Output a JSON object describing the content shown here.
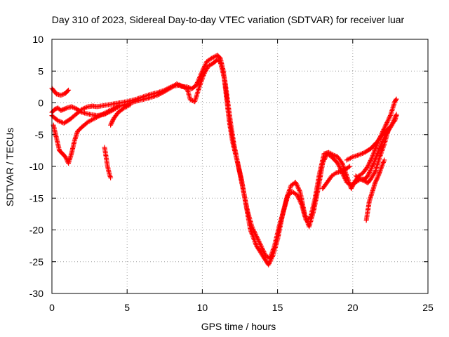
{
  "chart_data": {
    "type": "scatter",
    "title": "Day 310 of 2023, Sidereal Day-to-day VTEC variation (SDTVAR) for receiver luar",
    "xlabel": "GPS time / hours",
    "ylabel": "SDTVAR / TECUs",
    "xlim": [
      0,
      25
    ],
    "ylim": [
      -30,
      10
    ],
    "xticks": [
      "0",
      "5",
      "10",
      "15",
      "20",
      "25"
    ],
    "yticks": [
      "10",
      "5",
      "0",
      "-5",
      "-10",
      "-15",
      "-20",
      "-25",
      "-30"
    ],
    "grid": true,
    "marker": "+",
    "color": "#ff0000",
    "series": [
      {
        "points": [
          [
            0.0,
            -1.5
          ],
          [
            0.2,
            -1.0
          ],
          [
            0.4,
            -0.8
          ],
          [
            0.6,
            -1.2
          ],
          [
            0.8,
            -1.0
          ],
          [
            1.0,
            -0.8
          ],
          [
            1.3,
            -0.6
          ],
          [
            1.6,
            -0.9
          ],
          [
            2.0,
            -1.5
          ],
          [
            2.5,
            -1.8
          ],
          [
            3.0,
            -2.0
          ],
          [
            3.5,
            -1.8
          ],
          [
            4.0,
            -1.2
          ],
          [
            4.5,
            -0.5
          ],
          [
            5.0,
            -0.2
          ],
          [
            5.5,
            0.2
          ],
          [
            6.0,
            0.5
          ],
          [
            6.5,
            0.8
          ],
          [
            7.0,
            1.2
          ],
          [
            7.5,
            1.8
          ],
          [
            8.0,
            2.5
          ],
          [
            8.3,
            3.0
          ],
          [
            8.6,
            2.6
          ],
          [
            9.0,
            2.5
          ],
          [
            9.3,
            2.2
          ],
          [
            9.6,
            2.8
          ],
          [
            10.0,
            5.0
          ],
          [
            10.3,
            6.5
          ],
          [
            10.6,
            7.0
          ],
          [
            11.0,
            7.5
          ],
          [
            11.2,
            7.0
          ],
          [
            11.4,
            5.0
          ],
          [
            11.6,
            1.0
          ],
          [
            11.8,
            -3.0
          ],
          [
            12.0,
            -6.0
          ],
          [
            12.3,
            -9.0
          ],
          [
            12.6,
            -12.0
          ],
          [
            12.9,
            -16.0
          ],
          [
            13.2,
            -20.0
          ],
          [
            13.6,
            -22.5
          ],
          [
            14.0,
            -24.0
          ],
          [
            14.4,
            -25.5
          ],
          [
            14.7,
            -24.0
          ],
          [
            15.0,
            -21.5
          ],
          [
            15.3,
            -18.0
          ],
          [
            15.6,
            -15.0
          ],
          [
            15.9,
            -13.0
          ],
          [
            16.2,
            -12.5
          ],
          [
            16.5,
            -14.0
          ],
          [
            16.8,
            -17.5
          ],
          [
            17.1,
            -19.5
          ],
          [
            17.4,
            -17.0
          ],
          [
            17.7,
            -13.5
          ],
          [
            18.0,
            -9.5
          ],
          [
            18.3,
            -8.0
          ],
          [
            18.6,
            -8.5
          ],
          [
            19.0,
            -9.5
          ],
          [
            19.3,
            -11.0
          ],
          [
            19.6,
            -12.5
          ],
          [
            19.9,
            -13.0
          ],
          [
            20.2,
            -12.5
          ],
          [
            20.5,
            -12.0
          ],
          [
            20.8,
            -12.0
          ],
          [
            21.0,
            -11.5
          ],
          [
            21.4,
            -9.5
          ],
          [
            21.8,
            -7.0
          ],
          [
            22.2,
            -5.0
          ],
          [
            22.6,
            -3.5
          ],
          [
            22.9,
            -1.8
          ]
        ]
      },
      {
        "points": [
          [
            0.0,
            -2.0
          ],
          [
            0.4,
            -2.8
          ],
          [
            0.8,
            -3.2
          ],
          [
            1.2,
            -2.6
          ],
          [
            1.6,
            -1.8
          ],
          [
            2.0,
            -1.0
          ],
          [
            2.4,
            -0.6
          ],
          [
            2.7,
            -0.5
          ],
          [
            3.0,
            -0.6
          ],
          [
            3.5,
            -0.4
          ],
          [
            4.0,
            -0.2
          ],
          [
            4.5,
            0.0
          ],
          [
            5.0,
            0.2
          ],
          [
            5.5,
            0.5
          ],
          [
            6.0,
            0.9
          ],
          [
            6.5,
            1.3
          ],
          [
            7.0,
            1.6
          ],
          [
            7.5,
            2.0
          ],
          [
            8.0,
            2.6
          ],
          [
            8.5,
            2.8
          ],
          [
            9.0,
            2.2
          ],
          [
            9.2,
            0.5
          ],
          [
            9.5,
            0.2
          ],
          [
            9.8,
            2.5
          ],
          [
            10.1,
            4.5
          ],
          [
            10.4,
            5.8
          ],
          [
            10.7,
            6.2
          ],
          [
            11.0,
            6.8
          ],
          [
            11.2,
            6.4
          ],
          [
            11.5,
            3.5
          ],
          [
            11.7,
            0.0
          ],
          [
            11.9,
            -3.5
          ],
          [
            12.1,
            -6.5
          ],
          [
            12.4,
            -10.0
          ],
          [
            12.7,
            -13.5
          ],
          [
            13.0,
            -17.0
          ],
          [
            13.3,
            -19.5
          ],
          [
            13.6,
            -21.0
          ],
          [
            13.9,
            -22.5
          ],
          [
            14.2,
            -24.0
          ],
          [
            14.5,
            -24.5
          ],
          [
            14.8,
            -22.5
          ],
          [
            15.1,
            -19.5
          ],
          [
            15.4,
            -17.0
          ],
          [
            15.7,
            -14.5
          ],
          [
            16.0,
            -14.0
          ],
          [
            16.3,
            -14.5
          ],
          [
            16.6,
            -16.0
          ],
          [
            16.9,
            -18.5
          ],
          [
            17.2,
            -18.0
          ],
          [
            17.5,
            -15.0
          ],
          [
            17.8,
            -11.0
          ],
          [
            18.1,
            -8.0
          ],
          [
            18.4,
            -7.8
          ],
          [
            18.7,
            -8.2
          ],
          [
            19.0,
            -8.5
          ],
          [
            19.3,
            -9.5
          ],
          [
            19.6,
            -11.5
          ],
          [
            19.9,
            -13.5
          ],
          [
            20.1,
            -12.5
          ],
          [
            20.4,
            -11.5
          ],
          [
            20.7,
            -11.0
          ],
          [
            21.0,
            -10.0
          ],
          [
            21.3,
            -8.5
          ],
          [
            21.7,
            -6.0
          ],
          [
            22.1,
            -4.0
          ],
          [
            22.5,
            -2.0
          ],
          [
            22.8,
            0.2
          ],
          [
            22.9,
            0.6
          ]
        ]
      },
      {
        "points": [
          [
            0.1,
            -3.5
          ],
          [
            0.3,
            -5.5
          ],
          [
            0.5,
            -7.5
          ],
          [
            0.7,
            -8.0
          ],
          [
            0.9,
            -8.5
          ],
          [
            1.1,
            -9.5
          ],
          [
            1.3,
            -8.0
          ],
          [
            1.5,
            -6.0
          ],
          [
            1.7,
            -4.5
          ],
          [
            2.0,
            -3.8
          ],
          [
            2.4,
            -3.0
          ],
          [
            2.8,
            -2.5
          ],
          [
            3.2,
            -2.0
          ],
          [
            3.6,
            -1.5
          ],
          [
            4.0,
            -1.0
          ],
          [
            4.4,
            -0.5
          ]
        ]
      },
      {
        "points": [
          [
            0.0,
            2.3
          ],
          [
            0.3,
            1.4
          ],
          [
            0.6,
            1.2
          ],
          [
            0.9,
            1.5
          ],
          [
            1.1,
            2.0
          ]
        ]
      },
      {
        "points": [
          [
            3.5,
            -7.0
          ],
          [
            3.6,
            -8.5
          ],
          [
            3.7,
            -10.0
          ],
          [
            3.8,
            -11.0
          ],
          [
            3.9,
            -11.8
          ]
        ]
      },
      {
        "points": [
          [
            3.9,
            -3.5
          ],
          [
            4.1,
            -2.5
          ],
          [
            4.4,
            -1.5
          ],
          [
            4.8,
            -0.8
          ],
          [
            5.2,
            -0.3
          ]
        ]
      },
      {
        "points": [
          [
            18.0,
            -13.5
          ],
          [
            18.3,
            -12.5
          ],
          [
            18.6,
            -11.5
          ],
          [
            18.9,
            -11.0
          ],
          [
            19.2,
            -10.8
          ],
          [
            19.5,
            -10.5
          ],
          [
            19.8,
            -10.0
          ]
        ]
      },
      {
        "points": [
          [
            19.6,
            -9.0
          ],
          [
            20.0,
            -8.5
          ],
          [
            20.4,
            -8.2
          ],
          [
            20.8,
            -7.8
          ],
          [
            21.2,
            -7.2
          ],
          [
            21.6,
            -6.2
          ],
          [
            22.0,
            -5.0
          ],
          [
            22.4,
            -4.0
          ],
          [
            22.8,
            -2.8
          ],
          [
            22.9,
            -2.0
          ]
        ]
      },
      {
        "points": [
          [
            20.2,
            -11.5
          ],
          [
            20.5,
            -12.0
          ],
          [
            20.8,
            -12.3
          ],
          [
            21.0,
            -12.6
          ],
          [
            21.2,
            -12.0
          ],
          [
            21.5,
            -10.8
          ],
          [
            21.8,
            -8.5
          ],
          [
            22.1,
            -6.5
          ],
          [
            22.4,
            -4.0
          ]
        ]
      },
      {
        "points": [
          [
            20.9,
            -18.5
          ],
          [
            21.0,
            -17.0
          ],
          [
            21.1,
            -15.5
          ],
          [
            21.3,
            -14.0
          ],
          [
            21.5,
            -12.5
          ],
          [
            21.7,
            -11.5
          ],
          [
            21.9,
            -10.2
          ],
          [
            22.1,
            -9.0
          ]
        ]
      }
    ]
  }
}
